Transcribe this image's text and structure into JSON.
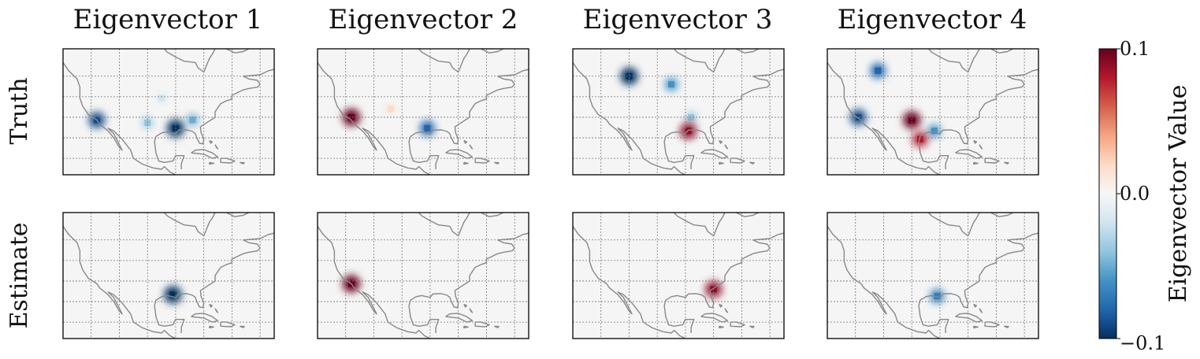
{
  "chart_data": {
    "type": "heatmap",
    "column_titles": [
      "Eigenvector 1",
      "Eigenvector 2",
      "Eigenvector 3",
      "Eigenvector 4"
    ],
    "row_labels": [
      "Truth",
      "Estimate"
    ],
    "colorbar": {
      "label": "Eigenvector Value",
      "min": -0.1,
      "max": 0.1,
      "ticks": [
        "0.1",
        "0.0",
        "−0.1"
      ],
      "colormap": "RdBu_r"
    },
    "map_region": "North America",
    "grid": true,
    "panels": [
      {
        "row": "Truth",
        "column": "Eigenvector 1",
        "spots": [
          {
            "lon": -118,
            "lat": 34,
            "value": -0.09
          },
          {
            "lon": -90,
            "lat": 31,
            "value": -0.1
          },
          {
            "lon": -100,
            "lat": 33,
            "value": -0.04
          },
          {
            "lon": -95,
            "lat": 42,
            "value": -0.02
          },
          {
            "lon": -84,
            "lat": 34,
            "value": -0.05
          }
        ]
      },
      {
        "row": "Truth",
        "column": "Eigenvector 2",
        "spots": [
          {
            "lon": -118,
            "lat": 35,
            "value": 0.1
          },
          {
            "lon": -91,
            "lat": 31,
            "value": -0.08
          },
          {
            "lon": -104,
            "lat": 38,
            "value": 0.02
          }
        ]
      },
      {
        "row": "Truth",
        "column": "Eigenvector 3",
        "spots": [
          {
            "lon": -110,
            "lat": 50,
            "value": -0.1
          },
          {
            "lon": -95,
            "lat": 47,
            "value": -0.06
          },
          {
            "lon": -88,
            "lat": 35,
            "value": -0.04
          },
          {
            "lon": -89,
            "lat": 30,
            "value": 0.09
          }
        ]
      },
      {
        "row": "Truth",
        "column": "Eigenvector 4",
        "spots": [
          {
            "lon": -100,
            "lat": 34,
            "value": 0.1
          },
          {
            "lon": -119,
            "lat": 35,
            "value": -0.09
          },
          {
            "lon": -112,
            "lat": 52,
            "value": -0.08
          },
          {
            "lon": -92,
            "lat": 30,
            "value": -0.06
          },
          {
            "lon": -97,
            "lat": 27,
            "value": 0.08
          }
        ]
      },
      {
        "row": "Estimate",
        "column": "Eigenvector 1",
        "spots": [
          {
            "lon": -91,
            "lat": 30,
            "value": -0.1
          }
        ]
      },
      {
        "row": "Estimate",
        "column": "Eigenvector 2",
        "spots": [
          {
            "lon": -118,
            "lat": 34,
            "value": 0.1
          }
        ]
      },
      {
        "row": "Estimate",
        "column": "Eigenvector 3",
        "spots": [
          {
            "lon": -80,
            "lat": 32,
            "value": 0.09
          }
        ]
      },
      {
        "row": "Estimate",
        "column": "Eigenvector 4",
        "spots": [
          {
            "lon": -91,
            "lat": 29.5,
            "value": -0.07
          }
        ]
      }
    ]
  }
}
